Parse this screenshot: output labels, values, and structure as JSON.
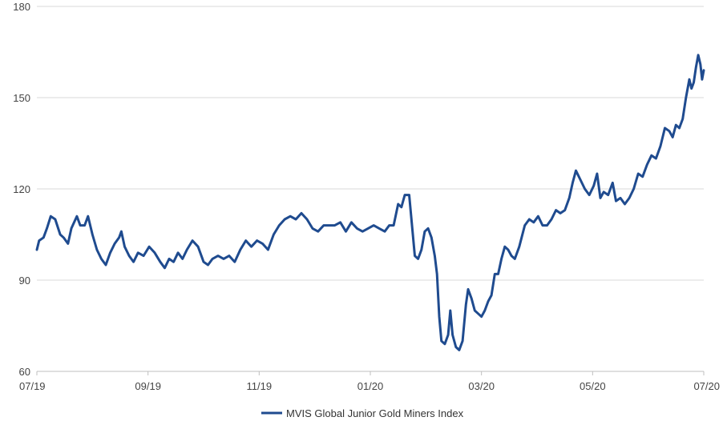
{
  "chart_data": {
    "type": "line",
    "title": "",
    "xlabel": "",
    "ylabel": "",
    "ylim": [
      60,
      180
    ],
    "y_ticks": [
      "60",
      "90",
      "120",
      "150",
      "180"
    ],
    "x_ticks": [
      {
        "t": 0,
        "label": "07/19"
      },
      {
        "t": 2,
        "label": "09/19"
      },
      {
        "t": 4,
        "label": "11/19"
      },
      {
        "t": 6,
        "label": "01/20"
      },
      {
        "t": 8,
        "label": "03/20"
      },
      {
        "t": 10,
        "label": "05/20"
      },
      {
        "t": 12,
        "label": "07/20"
      }
    ],
    "xlim": [
      0,
      12
    ],
    "grid": "horizontal",
    "legend_position": "bottom-center",
    "series": [
      {
        "name": "MVIS Global Junior Gold Miners Index",
        "color": "#1f4b8f",
        "points": [
          [
            0.0,
            100
          ],
          [
            0.04,
            103
          ],
          [
            0.12,
            104
          ],
          [
            0.18,
            107
          ],
          [
            0.25,
            111
          ],
          [
            0.33,
            110
          ],
          [
            0.42,
            105
          ],
          [
            0.48,
            104
          ],
          [
            0.56,
            102
          ],
          [
            0.62,
            107
          ],
          [
            0.72,
            111
          ],
          [
            0.78,
            108
          ],
          [
            0.86,
            108
          ],
          [
            0.92,
            111
          ],
          [
            1.0,
            105
          ],
          [
            1.08,
            100
          ],
          [
            1.16,
            97
          ],
          [
            1.24,
            95
          ],
          [
            1.32,
            99
          ],
          [
            1.4,
            102
          ],
          [
            1.48,
            104
          ],
          [
            1.52,
            106
          ],
          [
            1.58,
            101
          ],
          [
            1.66,
            98
          ],
          [
            1.74,
            96
          ],
          [
            1.82,
            99
          ],
          [
            1.92,
            98
          ],
          [
            2.02,
            101
          ],
          [
            2.12,
            99
          ],
          [
            2.22,
            96
          ],
          [
            2.3,
            94
          ],
          [
            2.38,
            97
          ],
          [
            2.46,
            96
          ],
          [
            2.54,
            99
          ],
          [
            2.62,
            97
          ],
          [
            2.7,
            100
          ],
          [
            2.8,
            103
          ],
          [
            2.9,
            101
          ],
          [
            3.0,
            96
          ],
          [
            3.08,
            95
          ],
          [
            3.16,
            97
          ],
          [
            3.26,
            98
          ],
          [
            3.36,
            97
          ],
          [
            3.46,
            98
          ],
          [
            3.56,
            96
          ],
          [
            3.66,
            100
          ],
          [
            3.76,
            103
          ],
          [
            3.86,
            101
          ],
          [
            3.96,
            103
          ],
          [
            4.06,
            102
          ],
          [
            4.16,
            100
          ],
          [
            4.26,
            105
          ],
          [
            4.36,
            108
          ],
          [
            4.46,
            110
          ],
          [
            4.56,
            111
          ],
          [
            4.66,
            110
          ],
          [
            4.76,
            112
          ],
          [
            4.86,
            110
          ],
          [
            4.96,
            107
          ],
          [
            5.06,
            106
          ],
          [
            5.16,
            108
          ],
          [
            5.26,
            108
          ],
          [
            5.36,
            108
          ],
          [
            5.46,
            109
          ],
          [
            5.56,
            106
          ],
          [
            5.66,
            109
          ],
          [
            5.76,
            107
          ],
          [
            5.86,
            106
          ],
          [
            5.96,
            107
          ],
          [
            6.06,
            108
          ],
          [
            6.16,
            107
          ],
          [
            6.26,
            106
          ],
          [
            6.34,
            108
          ],
          [
            6.42,
            108
          ],
          [
            6.5,
            115
          ],
          [
            6.56,
            114
          ],
          [
            6.62,
            118
          ],
          [
            6.7,
            118
          ],
          [
            6.76,
            106
          ],
          [
            6.8,
            98
          ],
          [
            6.86,
            97
          ],
          [
            6.92,
            100
          ],
          [
            6.98,
            106
          ],
          [
            7.04,
            107
          ],
          [
            7.1,
            104
          ],
          [
            7.16,
            98
          ],
          [
            7.2,
            92
          ],
          [
            7.24,
            78
          ],
          [
            7.28,
            70
          ],
          [
            7.34,
            69
          ],
          [
            7.4,
            72
          ],
          [
            7.44,
            80
          ],
          [
            7.48,
            72
          ],
          [
            7.54,
            68
          ],
          [
            7.6,
            67
          ],
          [
            7.66,
            70
          ],
          [
            7.72,
            82
          ],
          [
            7.76,
            87
          ],
          [
            7.82,
            84
          ],
          [
            7.88,
            80
          ],
          [
            7.94,
            79
          ],
          [
            8.0,
            78
          ],
          [
            8.06,
            80
          ],
          [
            8.12,
            83
          ],
          [
            8.18,
            85
          ],
          [
            8.24,
            92
          ],
          [
            8.3,
            92
          ],
          [
            8.36,
            97
          ],
          [
            8.42,
            101
          ],
          [
            8.48,
            100
          ],
          [
            8.54,
            98
          ],
          [
            8.6,
            97
          ],
          [
            8.68,
            101
          ],
          [
            8.78,
            108
          ],
          [
            8.86,
            110
          ],
          [
            8.94,
            109
          ],
          [
            9.02,
            111
          ],
          [
            9.1,
            108
          ],
          [
            9.18,
            108
          ],
          [
            9.26,
            110
          ],
          [
            9.34,
            113
          ],
          [
            9.42,
            112
          ],
          [
            9.5,
            113
          ],
          [
            9.58,
            117
          ],
          [
            9.64,
            122
          ],
          [
            9.7,
            126
          ],
          [
            9.78,
            123
          ],
          [
            9.86,
            120
          ],
          [
            9.94,
            118
          ],
          [
            10.02,
            121
          ],
          [
            10.08,
            125
          ],
          [
            10.14,
            117
          ],
          [
            10.2,
            119
          ],
          [
            10.28,
            118
          ],
          [
            10.36,
            122
          ],
          [
            10.42,
            116
          ],
          [
            10.5,
            117
          ],
          [
            10.58,
            115
          ],
          [
            10.66,
            117
          ],
          [
            10.74,
            120
          ],
          [
            10.82,
            125
          ],
          [
            10.9,
            124
          ],
          [
            10.98,
            128
          ],
          [
            11.06,
            131
          ],
          [
            11.14,
            130
          ],
          [
            11.22,
            134
          ],
          [
            11.3,
            140
          ],
          [
            11.38,
            139
          ],
          [
            11.44,
            137
          ],
          [
            11.5,
            141
          ],
          [
            11.56,
            140
          ],
          [
            11.62,
            143
          ],
          [
            11.68,
            150
          ],
          [
            11.74,
            156
          ],
          [
            11.78,
            153
          ],
          [
            11.82,
            155
          ],
          [
            11.86,
            160
          ],
          [
            11.9,
            164
          ],
          [
            11.94,
            161
          ],
          [
            11.97,
            156
          ],
          [
            12.0,
            159
          ]
        ]
      }
    ]
  }
}
